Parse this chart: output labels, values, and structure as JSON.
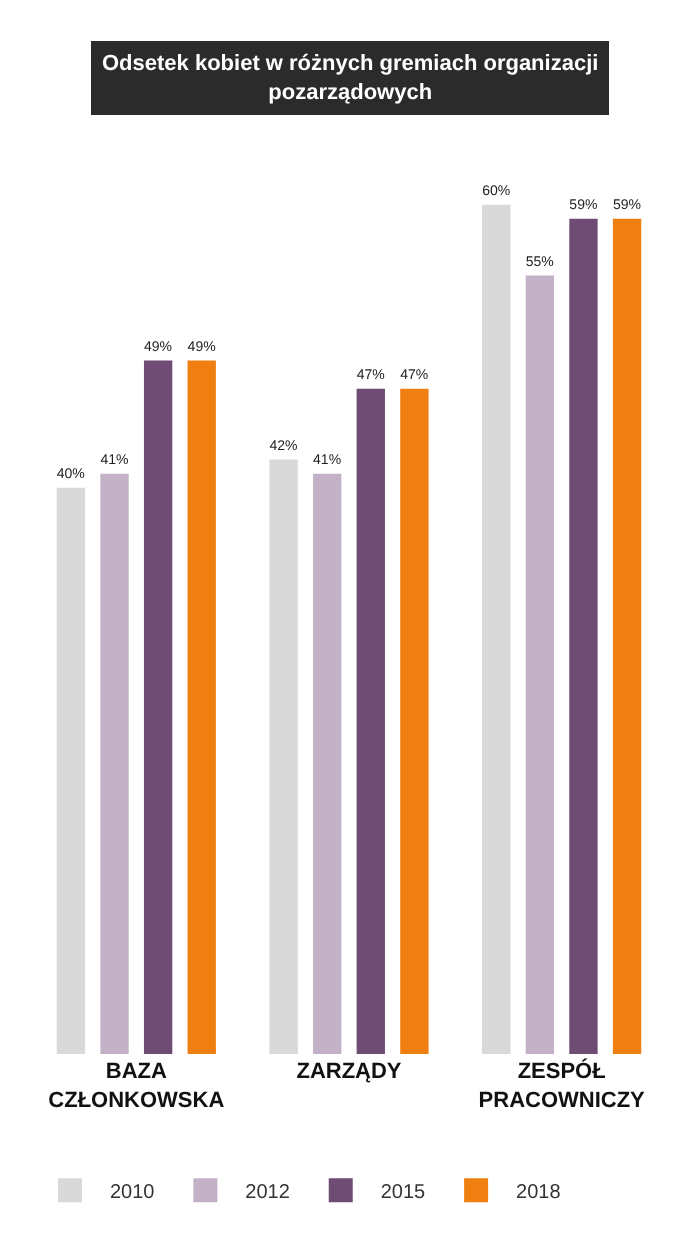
{
  "chart_data": {
    "type": "bar",
    "title": "Odsetek kobiet w różnych gremiach organizacji pozarządowych",
    "categories": [
      "BAZA CZŁONKOWSKA",
      "ZARZĄDY",
      "ZESPÓŁ PRACOWNICZY"
    ],
    "series": [
      {
        "name": "2010",
        "color": "#d9d9d9",
        "values": [
          40,
          42,
          60
        ],
        "value_labels": [
          "40%",
          "42%",
          "60%"
        ]
      },
      {
        "name": "2012",
        "color": "#c3b2c7",
        "values": [
          41,
          41,
          55
        ],
        "value_labels": [
          "41%",
          "41%",
          "55%"
        ]
      },
      {
        "name": "2015",
        "color": "#6e4c73",
        "values": [
          49,
          47,
          59
        ],
        "value_labels": [
          "49%",
          "47%",
          "59%"
        ]
      },
      {
        "name": "2018",
        "color": "#f07f12",
        "values": [
          49,
          47,
          59
        ],
        "value_labels": [
          "49%",
          "47%",
          "59%"
        ]
      }
    ],
    "grid": false,
    "legend": "bottom",
    "tick_labels": "x"
  }
}
